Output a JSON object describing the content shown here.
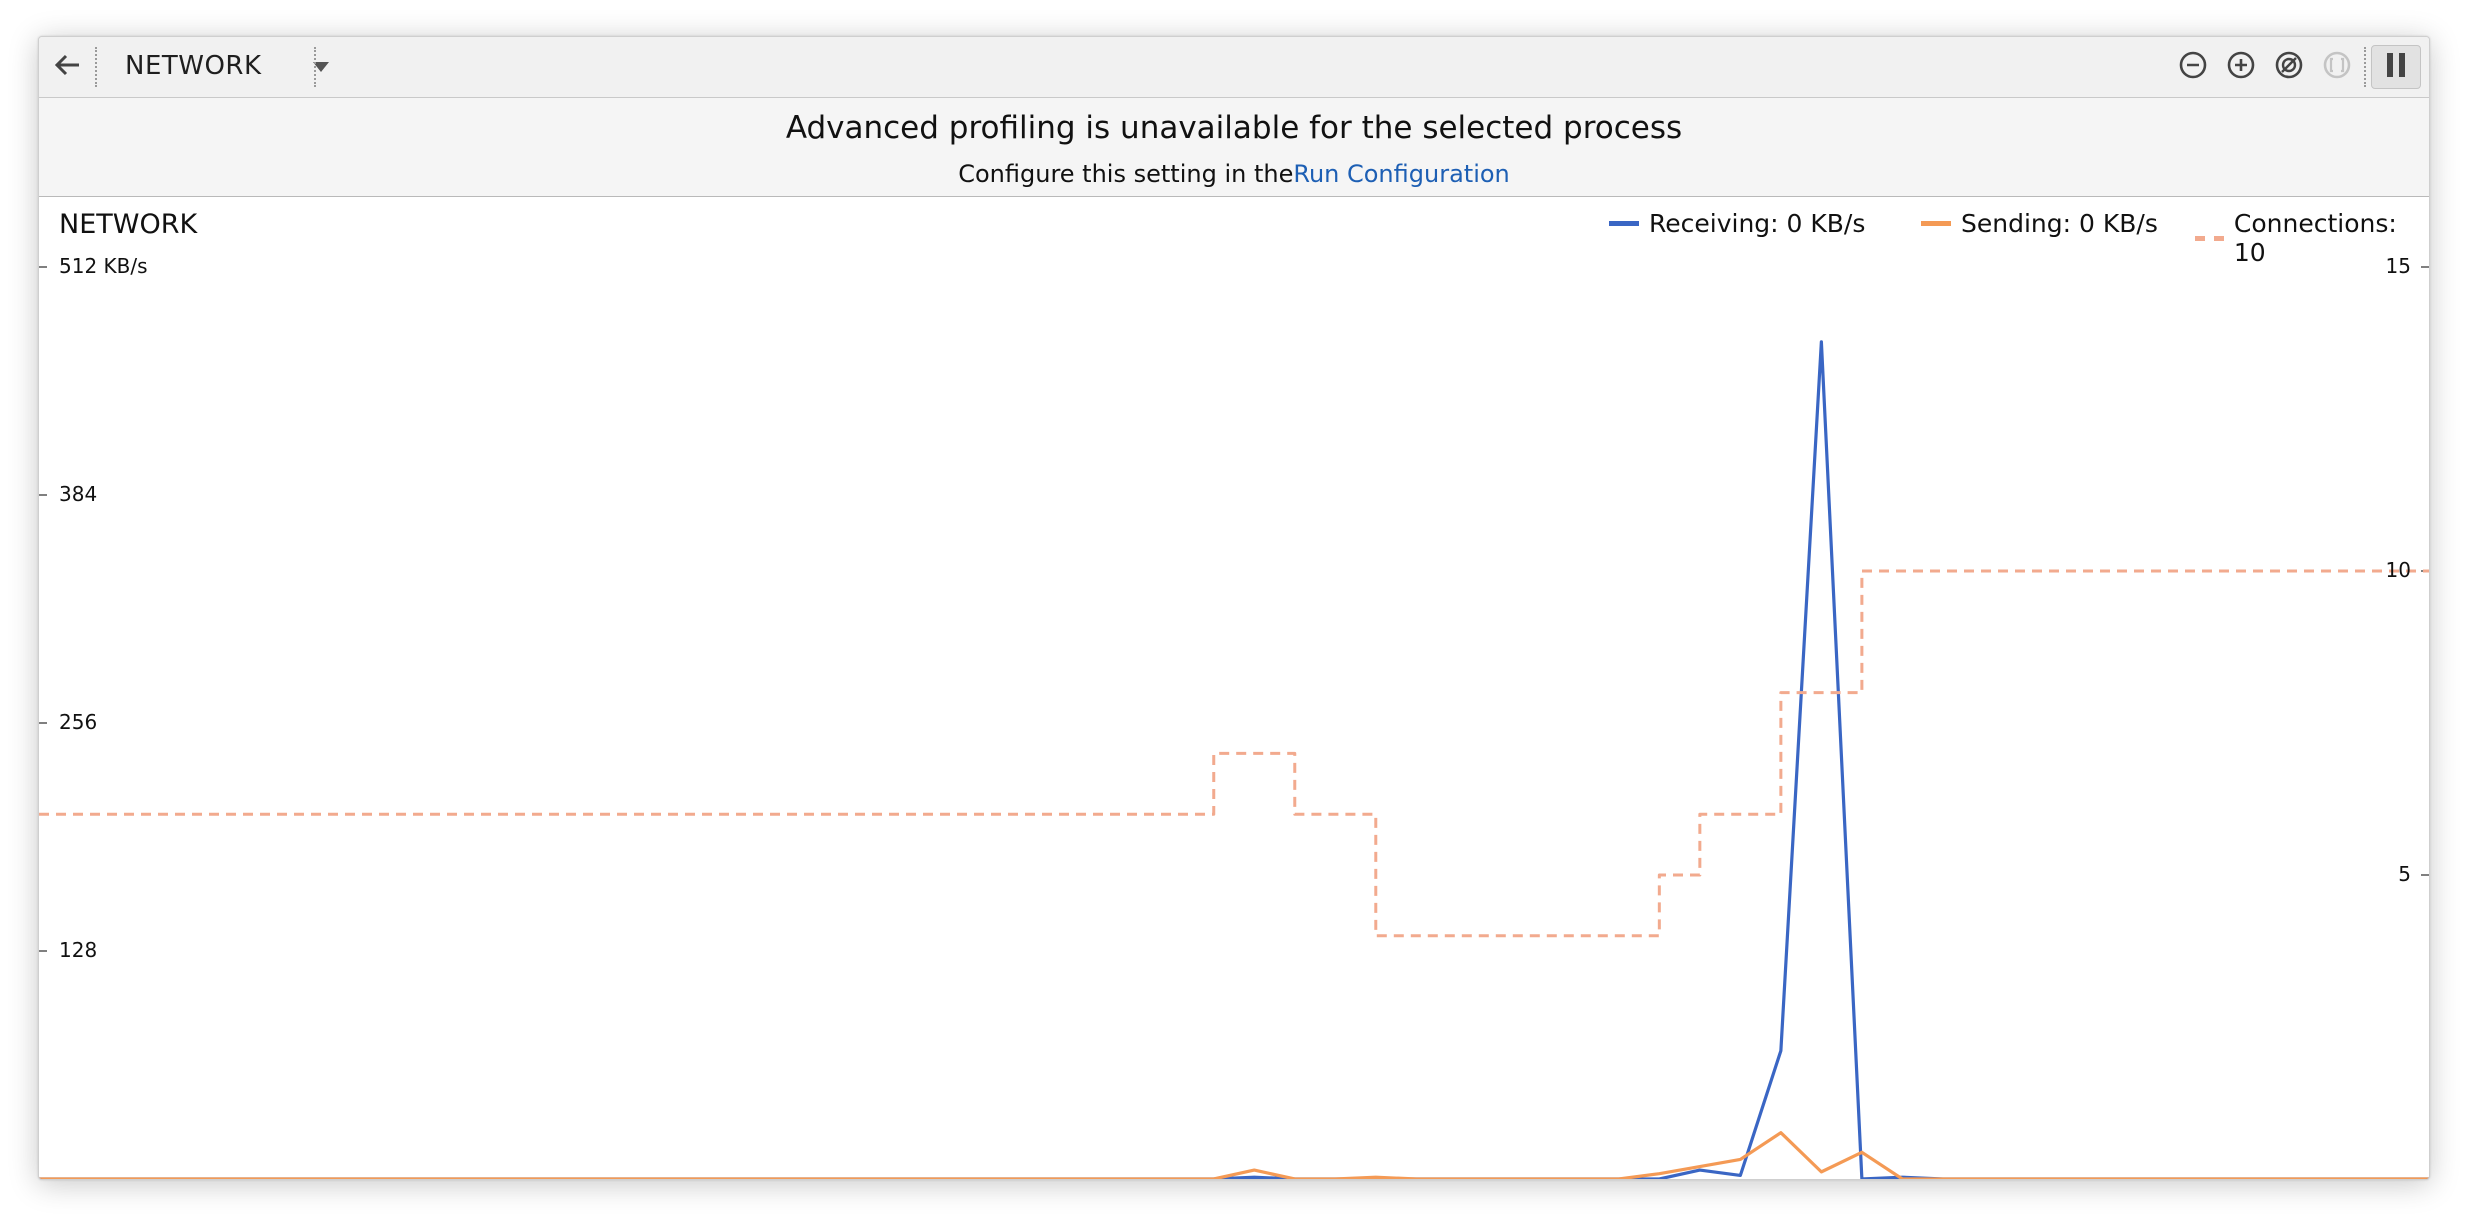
{
  "toolbar": {
    "back_icon": "arrow-left-icon",
    "monitor_label": "NETWORK",
    "dropdown_icon": "caret-down-icon",
    "zoom_out_icon": "zoom-out-icon",
    "zoom_in_icon": "zoom-in-icon",
    "reset_zoom_icon": "reset-zoom-icon",
    "fit_icon": "fit-range-icon",
    "pause_icon": "pause-icon"
  },
  "banner": {
    "title": "Advanced profiling is unavailable for the selected process",
    "subtitle_prefix": "Configure this setting in the",
    "subtitle_link": "Run Configuration"
  },
  "colors": {
    "receiving": "#3a66c4",
    "sending": "#f49a55",
    "connections": "#f2aa8e",
    "link": "#1d5fb4"
  },
  "chart_data": {
    "type": "line",
    "title": "NETWORK",
    "legend_placement": "top-right",
    "left_axis": {
      "ticks": [
        128,
        256,
        384,
        512
      ],
      "tick_labels": [
        "128",
        "256",
        "384",
        "512 KB/s"
      ],
      "range": [
        0,
        512
      ]
    },
    "right_axis": {
      "ticks": [
        5,
        10,
        15
      ],
      "tick_labels": [
        "5",
        "10",
        "15"
      ],
      "range": [
        0,
        15
      ]
    },
    "legend": [
      {
        "key": "receiving",
        "label": "Receiving: 0 KB/s"
      },
      {
        "key": "sending",
        "label": "Sending: 0 KB/s"
      },
      {
        "key": "connections",
        "label": "Connections: 10"
      }
    ],
    "x": [
      0,
      1,
      2,
      3,
      4,
      5,
      6,
      7,
      8,
      9,
      10,
      11,
      12,
      13,
      14,
      15,
      16,
      17,
      18,
      19,
      20,
      21,
      22,
      23,
      24,
      25,
      26,
      27,
      28,
      29,
      30,
      31,
      32,
      33,
      34,
      35,
      36,
      37,
      38,
      39,
      40,
      41,
      42,
      43,
      44,
      45,
      46,
      47,
      48,
      49,
      50,
      51,
      52,
      53,
      54,
      55,
      56,
      57,
      58,
      59
    ],
    "series": [
      {
        "key": "receiving",
        "axis": "left",
        "values": [
          0,
          0,
          0,
          0,
          0,
          0,
          0,
          0,
          0,
          0,
          0,
          0,
          0,
          0,
          0,
          0,
          0,
          0,
          0,
          0,
          0,
          0,
          0,
          0,
          0,
          0,
          0,
          0,
          0,
          0,
          1,
          0,
          0,
          0,
          0,
          0,
          0,
          0,
          0,
          0,
          0,
          5,
          2,
          72,
          470,
          0,
          1,
          0,
          0,
          0,
          0,
          0,
          0,
          0,
          0,
          0,
          0,
          0,
          0,
          0
        ]
      },
      {
        "key": "sending",
        "axis": "left",
        "values": [
          0,
          0,
          0,
          0,
          0,
          0,
          0,
          0,
          0,
          0,
          0,
          0,
          0,
          0,
          0,
          0,
          0,
          0,
          0,
          0,
          0,
          0,
          0,
          0,
          0,
          0,
          0,
          0,
          0,
          0,
          5,
          0,
          0,
          1,
          0,
          0,
          0,
          0,
          0,
          0,
          3,
          7,
          11,
          26,
          4,
          15,
          0,
          0,
          0,
          0,
          0,
          0,
          0,
          0,
          0,
          0,
          0,
          0,
          0,
          0
        ]
      },
      {
        "key": "connections",
        "axis": "right",
        "step": true,
        "values": [
          6,
          6,
          6,
          6,
          6,
          6,
          6,
          6,
          6,
          6,
          6,
          6,
          6,
          6,
          6,
          6,
          6,
          6,
          6,
          6,
          6,
          6,
          6,
          6,
          6,
          6,
          6,
          6,
          6,
          7,
          7,
          6,
          6,
          4,
          4,
          4,
          4,
          4,
          4,
          4,
          5,
          6,
          6,
          8,
          8,
          10,
          10,
          10,
          10,
          10,
          10,
          10,
          10,
          10,
          10,
          10,
          10,
          10,
          10,
          10
        ]
      }
    ]
  }
}
